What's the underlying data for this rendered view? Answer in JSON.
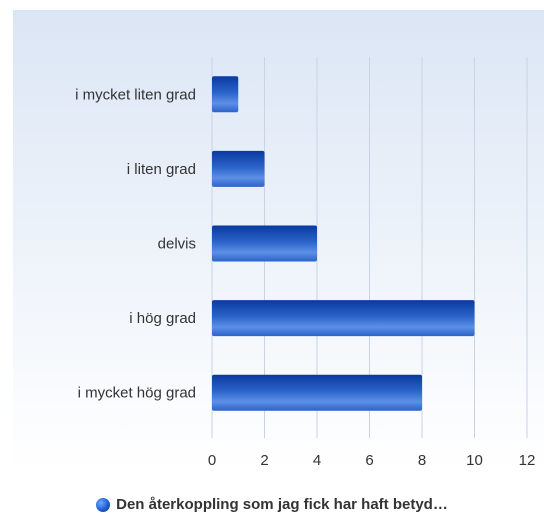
{
  "chart_data": {
    "type": "bar",
    "orientation": "horizontal",
    "categories": [
      "i mycket liten grad",
      "i liten grad",
      "delvis",
      "i hög grad",
      "i mycket hög grad"
    ],
    "series": [
      {
        "name": "Den återkoppling som jag fick har haft betyd…",
        "values": [
          1,
          2,
          4,
          10,
          8
        ],
        "color": "#1f5fd0"
      }
    ],
    "xlim": [
      0,
      12
    ],
    "xticks": [
      "0",
      "2",
      "4",
      "6",
      "8",
      "10",
      "12"
    ],
    "grid": true,
    "legend_position": "bottom"
  },
  "colors": {
    "bar_top": "#2b63c9",
    "bar_bottom": "#0a3a9e",
    "bar_highlight": "#5d8fe6",
    "plot_bg_top": "#dbe6f5",
    "plot_bg_bottom": "#ffffff",
    "grid": "#c8d3e6",
    "text": "#333333"
  }
}
